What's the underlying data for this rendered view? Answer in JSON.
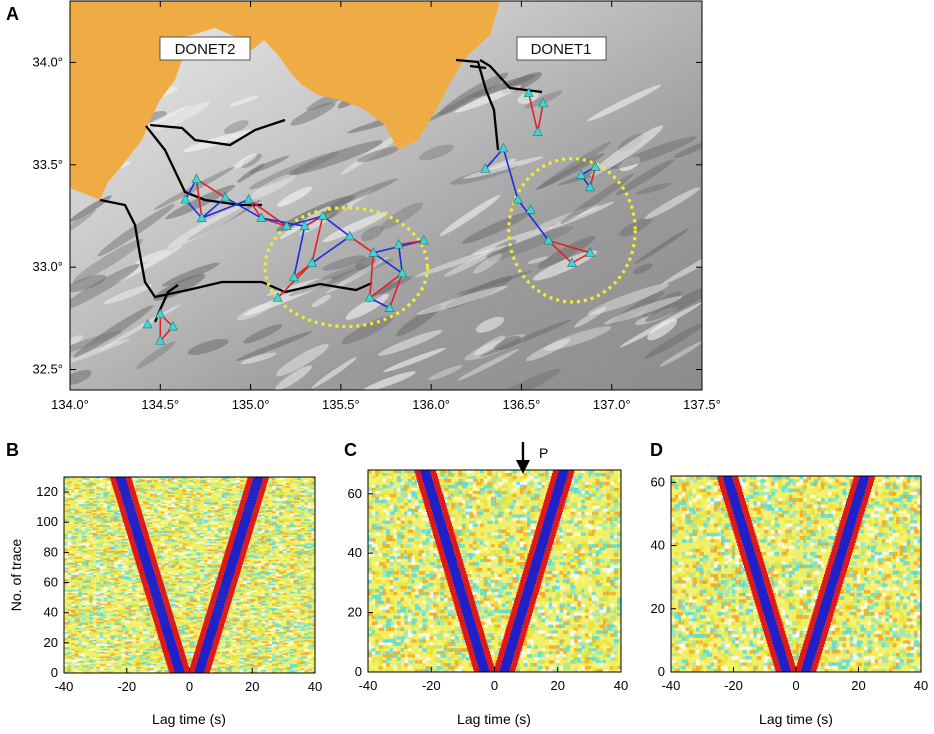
{
  "figure": {
    "panel_letters": [
      "A",
      "B",
      "C",
      "D"
    ],
    "network_labels": [
      "DONET2",
      "DONET1"
    ],
    "p_marker_label": "P"
  },
  "chart_data": [
    {
      "panel": "A",
      "type": "scatter",
      "title": "",
      "xlabel": "",
      "ylabel": "",
      "xlim": [
        134.0,
        137.5
      ],
      "ylim": [
        32.4,
        34.3
      ],
      "xticks": [
        134.0,
        134.5,
        135.0,
        135.5,
        136.0,
        136.5,
        137.0,
        137.5
      ],
      "yticks": [
        32.5,
        33.0,
        33.5,
        34.0
      ],
      "xtick_labels": [
        "134.0°",
        "134.5°",
        "135.0°",
        "135.5°",
        "136.0°",
        "136.5°",
        "137.0°",
        "137.5°"
      ],
      "ytick_labels": [
        "32.5°",
        "33.0°",
        "33.5°",
        "34.0°"
      ],
      "colors": {
        "land": "#f0ac44",
        "sea": "#a8a8a8",
        "station": "#3fd6d3",
        "path_red": "#e0202a",
        "path_blue": "#1a2ee0",
        "cable": "#000000",
        "cluster_ellipse": "#f2ef2a"
      },
      "stations": [
        [
          134.7,
          33.43
        ],
        [
          134.64,
          33.33
        ],
        [
          134.73,
          33.24
        ],
        [
          134.86,
          33.34
        ],
        [
          134.99,
          33.33
        ],
        [
          135.06,
          33.24
        ],
        [
          135.2,
          33.2
        ],
        [
          135.3,
          33.2
        ],
        [
          135.4,
          33.25
        ],
        [
          135.55,
          33.15
        ],
        [
          135.68,
          33.07
        ],
        [
          135.82,
          33.11
        ],
        [
          135.96,
          33.13
        ],
        [
          135.84,
          32.97
        ],
        [
          135.77,
          32.8
        ],
        [
          135.66,
          32.85
        ],
        [
          135.24,
          32.95
        ],
        [
          135.15,
          32.85
        ],
        [
          135.34,
          33.02
        ],
        [
          136.3,
          33.48
        ],
        [
          136.4,
          33.58
        ],
        [
          136.48,
          33.33
        ],
        [
          136.54,
          33.85
        ],
        [
          136.62,
          33.8
        ],
        [
          136.59,
          33.66
        ],
        [
          136.55,
          33.28
        ],
        [
          136.65,
          33.13
        ],
        [
          136.83,
          33.45
        ],
        [
          136.88,
          33.39
        ],
        [
          136.91,
          33.49
        ],
        [
          136.78,
          33.02
        ],
        [
          136.88,
          33.07
        ],
        [
          134.43,
          32.72
        ],
        [
          134.5,
          32.77
        ],
        [
          134.57,
          32.71
        ],
        [
          134.5,
          32.64
        ]
      ],
      "ellipses": [
        {
          "network": "DONET2",
          "center": [
            135.53,
            33.0
          ],
          "radius_lon": 0.45,
          "radius_lat": 0.29
        },
        {
          "network": "DONET1",
          "center": [
            136.78,
            33.18
          ],
          "radius_lon": 0.35,
          "radius_lat": 0.35
        }
      ]
    },
    {
      "panel": "B",
      "type": "heatmap",
      "xlabel": "Lag time (s)",
      "ylabel": "No. of trace",
      "xlim": [
        -40,
        40
      ],
      "ylim": [
        0,
        130
      ],
      "xticks": [
        -40,
        -20,
        0,
        20,
        40
      ],
      "yticks": [
        0,
        20,
        40,
        60,
        80,
        100,
        120
      ],
      "traces": 130,
      "moveout_lag_at_top_s": 22
    },
    {
      "panel": "C",
      "type": "heatmap",
      "xlabel": "Lag time (s)",
      "ylabel": "",
      "xlim": [
        -40,
        40
      ],
      "ylim": [
        0,
        68
      ],
      "xticks": [
        -40,
        -20,
        0,
        20,
        40
      ],
      "yticks": [
        0,
        20,
        40,
        60
      ],
      "traces": 68,
      "moveout_lag_at_top_s": 22,
      "p_arrow_lag_s": 9
    },
    {
      "panel": "D",
      "type": "heatmap",
      "xlabel": "Lag time (s)",
      "ylabel": "",
      "xlim": [
        -40,
        40
      ],
      "ylim": [
        0,
        62
      ],
      "xticks": [
        -40,
        -20,
        0,
        20,
        40
      ],
      "yticks": [
        0,
        20,
        40,
        60
      ],
      "traces": 62,
      "moveout_lag_at_top_s": 22
    }
  ]
}
